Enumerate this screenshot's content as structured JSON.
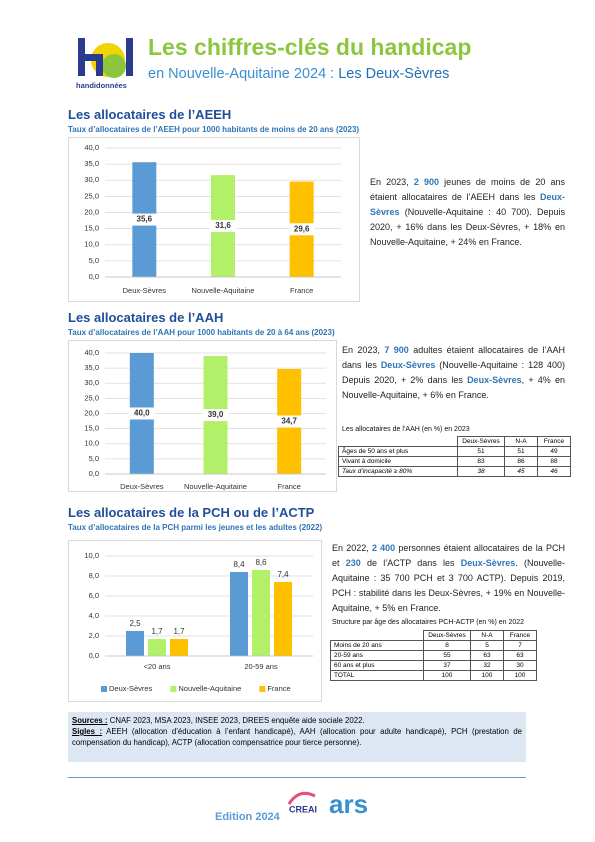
{
  "header": {
    "title": "Les chiffres-clés du handicap",
    "subtitle": "en Nouvelle-Aquitaine 2024 :",
    "place": "Les Deux-Sèvres",
    "logo": "handidonnées"
  },
  "sections": [
    {
      "heading": "Les allocataires de l’AEEH",
      "text": [
        {
          "text": "En 2023, "
        },
        {
          "text": "2 900",
          "color": "#2e75b6",
          "bold": true
        },
        {
          "text": " jeunes de moins de 20 ans étaient allocataires de l’AEEH dans les "
        },
        {
          "text": "Deux-Sèvres",
          "color": "#2e75b6",
          "bold": true
        },
        {
          "text": " (Nouvelle-Aquitaine : 40 700). Depuis 2020, + 16% dans les Deux-Sèvres, + 18% en Nouvelle-Aquitaine, + 24% en France."
        }
      ]
    },
    {
      "heading": "Les allocataires de l’AAH",
      "text": [
        {
          "text": "En 2023, "
        },
        {
          "text": "7 900",
          "color": "#2e75b6",
          "bold": true
        },
        {
          "text": " adultes étaient allocataires de l’AAH dans les "
        },
        {
          "text": "Deux-Sèvres",
          "color": "#2e75b6",
          "bold": true
        },
        {
          "text": " (Nouvelle-Aquitaine : 128 400) Depuis 2020, + 2% dans les "
        },
        {
          "text": "Deux-Sèvres",
          "color": "#2e75b6",
          "bold": true
        },
        {
          "text": ", + 4% en Nouvelle-Aquitaine, + 6% en France."
        }
      ]
    },
    {
      "heading": "Les allocataires de la PCH ou de l’ACTP",
      "text": [
        {
          "text": "En 2022, "
        },
        {
          "text": "2 400",
          "color": "#2e75b6",
          "bold": true
        },
        {
          "text": " personnes étaient allocataires de la PCH et "
        },
        {
          "text": "230",
          "color": "#2e75b6",
          "bold": true
        },
        {
          "text": " de l’ACTP dans les "
        },
        {
          "text": "Deux-Sèvres",
          "color": "#2e75b6",
          "bold": true
        },
        {
          "text": ". (Nouvelle-Aquitaine : 35 700 PCH et 3 700 ACTP). Depuis 2019, PCH : stabilité dans les Deux-Sèvres, + 19% en Nouvelle-Aquitaine, + 5% en France."
        }
      ]
    }
  ],
  "tables": [
    {
      "title": "Les allocataires de l’AAH (en %) en 2023",
      "columns": [
        "Deux-Sèvres",
        "N-A",
        "France"
      ],
      "rows": [
        [
          "Âges de 50 ans et plus",
          51,
          51,
          49
        ],
        [
          "Vivant à domicile",
          83,
          86,
          88
        ],
        [
          "Taux d’incapacité ≥ 80%",
          38,
          45,
          46
        ]
      ]
    },
    {
      "title": "Structure par âge des allocataires PCH-ACTP (en %) en 2022",
      "columns": [
        "Deux-Sèvres",
        "N-A",
        "France"
      ],
      "rows": [
        [
          "Moins de 20 ans",
          8,
          5,
          7
        ],
        [
          "20-59 ans",
          55,
          63,
          63
        ],
        [
          "60 ans et plus",
          37,
          32,
          30
        ],
        [
          "TOTAL",
          100,
          100,
          100
        ]
      ]
    }
  ],
  "sources": {
    "label": "Sources :",
    "text": "CNAF 2023, MSA 2023, INSEE 2023, DREES enquête aide sociale 2022."
  },
  "sigles": {
    "label": "Sigles :",
    "text": "AEEH (allocation d’éducation à l’enfant handicapé), AAH (allocation pour adulte handicapé), PCH (prestation de compensation du handicap), ACTP (allocation compensatrice pour tierce personne)."
  },
  "footer": {
    "edition": "Edition 2024",
    "logos": [
      "CREAI",
      "ars"
    ]
  },
  "chart_data": [
    {
      "type": "bar",
      "title": "Taux d’allocataires de l’AEEH pour 1000 habitants de moins de 20 ans (2023)",
      "categories": [
        "Deux-Sèvres",
        "Nouvelle-Aquitaine",
        "France"
      ],
      "values": [
        35.6,
        31.6,
        29.6
      ],
      "value_labels": [
        "35,6",
        "31,6",
        "29,6"
      ],
      "colors": [
        "#5b9bd5",
        "#b3f06a",
        "#ffc000"
      ],
      "ylim": [
        0,
        40
      ],
      "yticks": [
        {
          "value": 0,
          "label": "0,0"
        },
        {
          "value": 5,
          "label": "5,0"
        },
        {
          "value": 10,
          "label": "10,0"
        },
        {
          "value": 15,
          "label": "15,0"
        },
        {
          "value": 20,
          "label": "20,0"
        },
        {
          "value": 25,
          "label": "25,0"
        },
        {
          "value": 30,
          "label": "30,0"
        },
        {
          "value": 35,
          "label": "35,0"
        },
        {
          "value": 40,
          "label": "40,0"
        }
      ],
      "grid": true
    },
    {
      "type": "bar",
      "title": "Taux d’allocataires de l’AAH pour 1000 habitants de 20 à 64 ans (2023)",
      "categories": [
        "Deux-Sèvres",
        "Nouvelle-Aquitaine",
        "France"
      ],
      "values": [
        40.0,
        39.0,
        34.7
      ],
      "value_labels": [
        "40,0",
        "39,0",
        "34,7"
      ],
      "colors": [
        "#5b9bd5",
        "#b3f06a",
        "#ffc000"
      ],
      "ylim": [
        0,
        40
      ],
      "yticks": [
        {
          "value": 0,
          "label": "0,0"
        },
        {
          "value": 5,
          "label": "5,0"
        },
        {
          "value": 10,
          "label": "10,0"
        },
        {
          "value": 15,
          "label": "15,0"
        },
        {
          "value": 20,
          "label": "20,0"
        },
        {
          "value": 25,
          "label": "25,0"
        },
        {
          "value": 30,
          "label": "30,0"
        },
        {
          "value": 35,
          "label": "35,0"
        },
        {
          "value": 40,
          "label": "40,0"
        }
      ],
      "grid": true
    },
    {
      "type": "grouped_bar",
      "title": "Taux d’allocataires de la PCH parmi les jeunes et les adultes (2022)",
      "categories": [
        "<20 ans",
        "20-59 ans"
      ],
      "series": [
        {
          "name": "Deux-Sèvres",
          "color": "#5b9bd5",
          "values": [
            2.5,
            8.4
          ],
          "value_labels": [
            "2,5",
            "8,4"
          ]
        },
        {
          "name": "Nouvelle-Aquitaine",
          "color": "#b3f06a",
          "values": [
            1.7,
            8.6
          ],
          "value_labels": [
            "1,7",
            "8,6"
          ]
        },
        {
          "name": "France",
          "color": "#ffc000",
          "values": [
            1.7,
            7.4
          ],
          "value_labels": [
            "1,7",
            "7,4"
          ]
        }
      ],
      "ylim": [
        0,
        10
      ],
      "yticks": [
        {
          "value": 0,
          "label": "0,0"
        },
        {
          "value": 2,
          "label": "2,0"
        },
        {
          "value": 4,
          "label": "4,0"
        },
        {
          "value": 6,
          "label": "6,0"
        },
        {
          "value": 8,
          "label": "8,0"
        },
        {
          "value": 10,
          "label": "10,0"
        }
      ],
      "grid": true,
      "legend": "bottom"
    }
  ]
}
